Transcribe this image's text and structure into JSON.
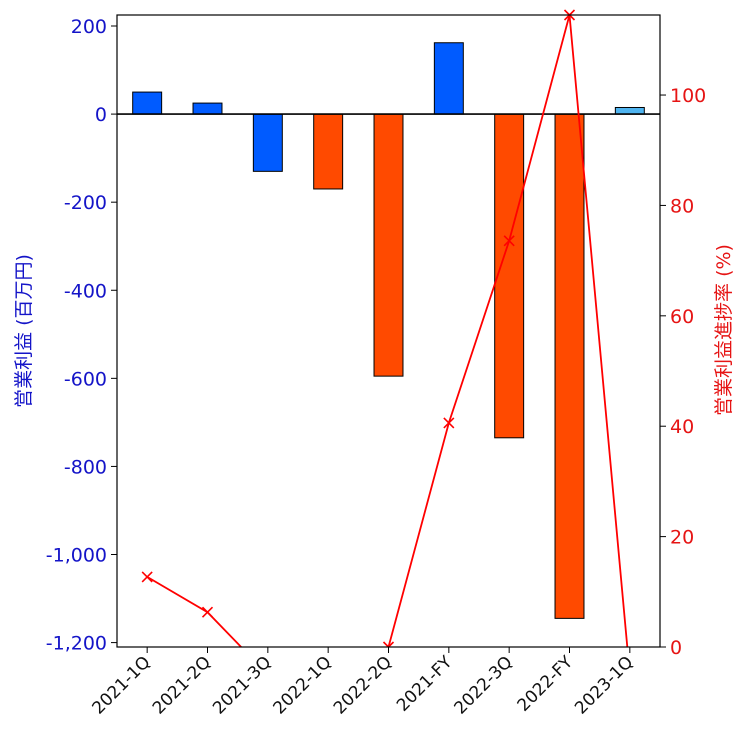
{
  "chart_data": {
    "type": "bar",
    "categories": [
      "2021-1Q",
      "2021-2Q",
      "2021-3Q",
      "2022-1Q",
      "2022-2Q",
      "2021-FY",
      "2022-3Q",
      "2022-FY",
      "2023-1Q"
    ],
    "series": [
      {
        "values": [
          50,
          25,
          -130,
          -170,
          -595,
          162,
          -735,
          -1145,
          15
        ],
        "colors": [
          "#005bff",
          "#005bff",
          "#005bff",
          "#ff4a00",
          "#ff4a00",
          "#005bff",
          "#ff4a00",
          "#ff4a00",
          "#4fb4f0"
        ],
        "axis": "left",
        "chart_type": "bar"
      },
      {
        "values": [
          12.7,
          6.3,
          -5,
          null,
          0,
          40.6,
          73.6,
          114.5,
          -5
        ],
        "color": "#ff0000",
        "axis": "right",
        "chart_type": "line",
        "marker": "x"
      }
    ],
    "ylabel": "営業利益 (百万円)",
    "ylabel_right": "営業利益進捗率 (%)",
    "ylim": [
      -1210,
      225
    ],
    "ylim_right": [
      0,
      114.5
    ],
    "yticks": [
      200,
      0,
      -200,
      -400,
      -600,
      -800,
      -1000,
      -1200
    ],
    "ytick_labels": [
      "200",
      "0",
      "-200",
      "-400",
      "-600",
      "-800",
      "-1,000",
      "-1,200"
    ],
    "yticks_right": [
      0,
      20,
      40,
      60,
      80,
      100
    ],
    "ytick_labels_right": [
      "0",
      "20",
      "40",
      "60",
      "80",
      "100"
    ],
    "zero_line": true,
    "grid": false,
    "left_axis_color": "#1414c8",
    "right_axis_color": "#e61414"
  }
}
